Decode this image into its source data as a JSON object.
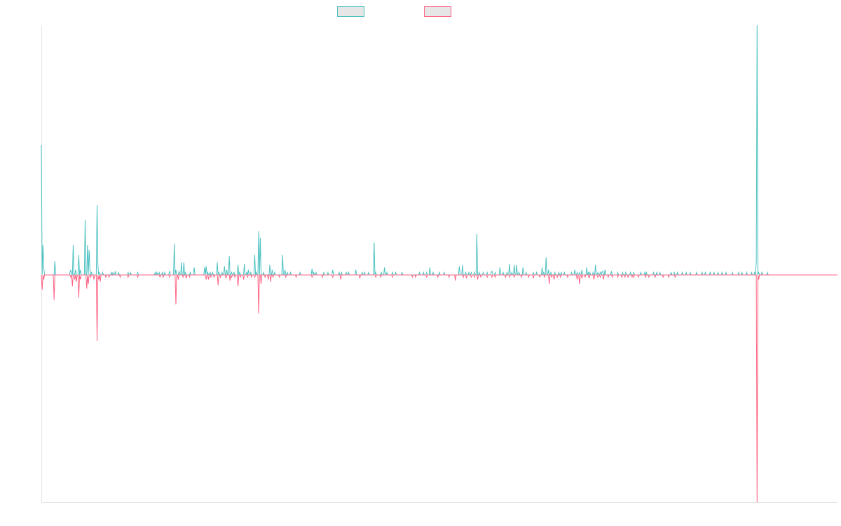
{
  "legend": {
    "items": [
      {
        "name": ""
      },
      {
        "name": ""
      }
    ]
  },
  "colors": {
    "series_a": "#4BC0C0",
    "series_b": "#FF6384",
    "swatch_fill": "#E6E6E6",
    "axis": "#E5E5E5"
  },
  "chart_data": {
    "type": "line",
    "title": "",
    "xlabel": "",
    "ylabel": "",
    "legend_position": "top-center",
    "grid": false,
    "ylim": [
      -1,
      1
    ],
    "x": {
      "start": 0,
      "end": 1000,
      "step": 1
    },
    "series": [
      {
        "color": "#4BC0C0",
        "baseline": 0,
        "peaks": [
          [
            0,
            0.52
          ],
          [
            2,
            0.12
          ],
          [
            3,
            0.03
          ],
          [
            17,
            0.055
          ],
          [
            36,
            0.01
          ],
          [
            37,
            0.02
          ],
          [
            40,
            0.12
          ],
          [
            43,
            0.02
          ],
          [
            47,
            0.08
          ],
          [
            49,
            0.02
          ],
          [
            55,
            0.22
          ],
          [
            58,
            0.12
          ],
          [
            60,
            0.1
          ],
          [
            61,
            0.02
          ],
          [
            63,
            0.01
          ],
          [
            70,
            0.28
          ],
          [
            71,
            0.04
          ],
          [
            73,
            0.01
          ],
          [
            77,
            0.01
          ],
          [
            88,
            0.01
          ],
          [
            90,
            0.01
          ],
          [
            93,
            0.015
          ],
          [
            97,
            0.01
          ],
          [
            109,
            0.01
          ],
          [
            112,
            0.01
          ],
          [
            121,
            0.01
          ],
          [
            143,
            0.01
          ],
          [
            145,
            0.01
          ],
          [
            148,
            0.01
          ],
          [
            152,
            0.01
          ],
          [
            155,
            0.01
          ],
          [
            161,
            0.015
          ],
          [
            167,
            0.125
          ],
          [
            169,
            0.02
          ],
          [
            173,
            0.015
          ],
          [
            176,
            0.05
          ],
          [
            179,
            0.05
          ],
          [
            181,
            0.01
          ],
          [
            187,
            0.01
          ],
          [
            192,
            0.03
          ],
          [
            205,
            0.03
          ],
          [
            207,
            0.035
          ],
          [
            209,
            0.01
          ],
          [
            212,
            0.01
          ],
          [
            215,
            0.01
          ],
          [
            221,
            0.05
          ],
          [
            223,
            0.01
          ],
          [
            227,
            0.01
          ],
          [
            230,
            0.035
          ],
          [
            233,
            0.02
          ],
          [
            236,
            0.075
          ],
          [
            239,
            0.01
          ],
          [
            242,
            0.01
          ],
          [
            247,
            0.04
          ],
          [
            249,
            0.01
          ],
          [
            255,
            0.045
          ],
          [
            258,
            0.01
          ],
          [
            260,
            0.02
          ],
          [
            263,
            0.01
          ],
          [
            268,
            0.08
          ],
          [
            270,
            0.01
          ],
          [
            273,
            0.175
          ],
          [
            275,
            0.15
          ],
          [
            279,
            0.01
          ],
          [
            287,
            0.04
          ],
          [
            290,
            0.02
          ],
          [
            293,
            0.01
          ],
          [
            303,
            0.08
          ],
          [
            306,
            0.02
          ],
          [
            309,
            0.01
          ],
          [
            313,
            0.01
          ],
          [
            325,
            0.01
          ],
          [
            340,
            0.025
          ],
          [
            342,
            0.01
          ],
          [
            345,
            0.01
          ],
          [
            355,
            0.01
          ],
          [
            360,
            0.01
          ],
          [
            366,
            0.02
          ],
          [
            374,
            0.01
          ],
          [
            377,
            0.01
          ],
          [
            383,
            0.01
          ],
          [
            386,
            0.01
          ],
          [
            395,
            0.02
          ],
          [
            403,
            0.01
          ],
          [
            406,
            0.01
          ],
          [
            411,
            0.01
          ],
          [
            418,
            0.13
          ],
          [
            420,
            0.01
          ],
          [
            427,
            0.01
          ],
          [
            431,
            0.03
          ],
          [
            434,
            0.01
          ],
          [
            441,
            0.01
          ],
          [
            445,
            0.01
          ],
          [
            453,
            0.01
          ],
          [
            475,
            0.01
          ],
          [
            480,
            0.01
          ],
          [
            484,
            0.01
          ],
          [
            492,
            0.01
          ],
          [
            488,
            0.03
          ],
          [
            500,
            0.01
          ],
          [
            506,
            0.01
          ],
          [
            525,
            0.035
          ],
          [
            529,
            0.04
          ],
          [
            533,
            0.01
          ],
          [
            537,
            0.01
          ],
          [
            540,
            0.01
          ],
          [
            544,
            0.01
          ],
          [
            547,
            0.165
          ],
          [
            550,
            0.01
          ],
          [
            555,
            0.01
          ],
          [
            560,
            0.01
          ],
          [
            565,
            0.01
          ],
          [
            566,
            0.015
          ],
          [
            570,
            0.01
          ],
          [
            576,
            0.03
          ],
          [
            580,
            0.01
          ],
          [
            585,
            0.01
          ],
          [
            588,
            0.045
          ],
          [
            591,
            0.01
          ],
          [
            594,
            0.04
          ],
          [
            597,
            0.04
          ],
          [
            600,
            0.01
          ],
          [
            605,
            0.03
          ],
          [
            609,
            0.01
          ],
          [
            618,
            0.01
          ],
          [
            622,
            0.01
          ],
          [
            629,
            0.03
          ],
          [
            631,
            0.01
          ],
          [
            634,
            0.07
          ],
          [
            637,
            0.02
          ],
          [
            640,
            0.01
          ],
          [
            645,
            0.01
          ],
          [
            650,
            0.01
          ],
          [
            653,
            0.01
          ],
          [
            657,
            0.01
          ],
          [
            666,
            0.01
          ],
          [
            670,
            0.02
          ],
          [
            673,
            0.01
          ],
          [
            676,
            0.01
          ],
          [
            679,
            0.02
          ],
          [
            685,
            0.03
          ],
          [
            687,
            0.01
          ],
          [
            689,
            0.01
          ],
          [
            693,
            0.01
          ],
          [
            696,
            0.04
          ],
          [
            699,
            0.01
          ],
          [
            702,
            0.01
          ],
          [
            704,
            0.01
          ],
          [
            705,
            0.015
          ],
          [
            708,
            0.02
          ],
          [
            716,
            0.015
          ],
          [
            724,
            0.01
          ],
          [
            730,
            0.01
          ],
          [
            734,
            0.01
          ],
          [
            740,
            0.01
          ],
          [
            744,
            0.01
          ],
          [
            753,
            0.01
          ],
          [
            758,
            0.01
          ],
          [
            760,
            0.01
          ],
          [
            769,
            0.01
          ],
          [
            773,
            0.01
          ],
          [
            777,
            0.01
          ],
          [
            791,
            0.01
          ],
          [
            795,
            0.01
          ],
          [
            799,
            0.01
          ],
          [
            805,
            0.01
          ],
          [
            810,
            0.01
          ],
          [
            815,
            0.01
          ],
          [
            823,
            0.01
          ],
          [
            830,
            0.01
          ],
          [
            834,
            0.01
          ],
          [
            840,
            0.01
          ],
          [
            845,
            0.01
          ],
          [
            850,
            0.01
          ],
          [
            855,
            0.01
          ],
          [
            860,
            0.01
          ],
          [
            868,
            0.01
          ],
          [
            876,
            0.01
          ],
          [
            880,
            0.01
          ],
          [
            886,
            0.01
          ],
          [
            892,
            0.01
          ],
          [
            896,
            0.01
          ],
          [
            898,
            0.055
          ],
          [
            899,
            1.0
          ],
          [
            901,
            0.01
          ],
          [
            905,
            0.01
          ],
          [
            912,
            0.01
          ]
        ]
      },
      {
        "color": "#FF6384",
        "baseline": 0,
        "peaks": [
          [
            1,
            -0.065
          ],
          [
            3,
            -0.02
          ],
          [
            16,
            -0.11
          ],
          [
            37,
            -0.01
          ],
          [
            39,
            -0.05
          ],
          [
            42,
            -0.02
          ],
          [
            44,
            -0.03
          ],
          [
            47,
            -0.1
          ],
          [
            49,
            -0.02
          ],
          [
            57,
            -0.06
          ],
          [
            59,
            -0.04
          ],
          [
            62,
            -0.01
          ],
          [
            66,
            -0.02
          ],
          [
            70,
            -0.29
          ],
          [
            72,
            -0.02
          ],
          [
            74,
            -0.03
          ],
          [
            81,
            -0.01
          ],
          [
            85,
            -0.01
          ],
          [
            99,
            -0.01
          ],
          [
            109,
            -0.01
          ],
          [
            121,
            -0.01
          ],
          [
            149,
            -0.01
          ],
          [
            153,
            -0.01
          ],
          [
            161,
            -0.01
          ],
          [
            169,
            -0.13
          ],
          [
            172,
            -0.02
          ],
          [
            178,
            -0.01
          ],
          [
            182,
            -0.015
          ],
          [
            186,
            -0.01
          ],
          [
            207,
            -0.02
          ],
          [
            210,
            -0.02
          ],
          [
            213,
            -0.01
          ],
          [
            217,
            -0.01
          ],
          [
            222,
            -0.045
          ],
          [
            225,
            -0.01
          ],
          [
            232,
            -0.015
          ],
          [
            237,
            -0.025
          ],
          [
            239,
            -0.01
          ],
          [
            243,
            -0.01
          ],
          [
            247,
            -0.05
          ],
          [
            250,
            -0.01
          ],
          [
            254,
            -0.02
          ],
          [
            259,
            -0.01
          ],
          [
            264,
            -0.01
          ],
          [
            268,
            -0.01
          ],
          [
            273,
            -0.17
          ],
          [
            276,
            -0.04
          ],
          [
            281,
            -0.01
          ],
          [
            285,
            -0.02
          ],
          [
            288,
            -0.03
          ],
          [
            291,
            -0.01
          ],
          [
            299,
            -0.01
          ],
          [
            307,
            -0.01
          ],
          [
            320,
            -0.01
          ],
          [
            340,
            -0.01
          ],
          [
            353,
            -0.01
          ],
          [
            366,
            -0.01
          ],
          [
            376,
            -0.02
          ],
          [
            400,
            -0.015
          ],
          [
            420,
            -0.01
          ],
          [
            426,
            -0.01
          ],
          [
            441,
            -0.01
          ],
          [
            466,
            -0.01
          ],
          [
            470,
            -0.01
          ],
          [
            484,
            -0.01
          ],
          [
            498,
            -0.01
          ],
          [
            512,
            -0.01
          ],
          [
            520,
            -0.025
          ],
          [
            530,
            -0.01
          ],
          [
            534,
            -0.015
          ],
          [
            540,
            -0.01
          ],
          [
            544,
            -0.01
          ],
          [
            548,
            -0.02
          ],
          [
            552,
            -0.01
          ],
          [
            560,
            -0.01
          ],
          [
            566,
            -0.01
          ],
          [
            570,
            -0.01
          ],
          [
            583,
            -0.01
          ],
          [
            588,
            -0.01
          ],
          [
            594,
            -0.01
          ],
          [
            603,
            -0.01
          ],
          [
            612,
            -0.01
          ],
          [
            618,
            -0.015
          ],
          [
            626,
            -0.01
          ],
          [
            632,
            -0.01
          ],
          [
            638,
            -0.04
          ],
          [
            641,
            -0.01
          ],
          [
            644,
            -0.02
          ],
          [
            648,
            -0.01
          ],
          [
            652,
            -0.01
          ],
          [
            661,
            -0.01
          ],
          [
            673,
            -0.02
          ],
          [
            676,
            -0.04
          ],
          [
            679,
            -0.015
          ],
          [
            683,
            -0.01
          ],
          [
            688,
            -0.015
          ],
          [
            694,
            -0.02
          ],
          [
            699,
            -0.01
          ],
          [
            702,
            -0.01
          ],
          [
            706,
            -0.02
          ],
          [
            712,
            -0.01
          ],
          [
            717,
            -0.01
          ],
          [
            724,
            -0.01
          ],
          [
            729,
            -0.01
          ],
          [
            733,
            -0.01
          ],
          [
            737,
            -0.01
          ],
          [
            742,
            -0.01
          ],
          [
            744,
            -0.01
          ],
          [
            750,
            -0.01
          ],
          [
            759,
            -0.01
          ],
          [
            763,
            -0.01
          ],
          [
            771,
            -0.01
          ],
          [
            781,
            -0.01
          ],
          [
            788,
            -0.01
          ],
          [
            796,
            -0.01
          ],
          [
            899,
            -1.0
          ],
          [
            901,
            -0.02
          ]
        ]
      }
    ]
  }
}
